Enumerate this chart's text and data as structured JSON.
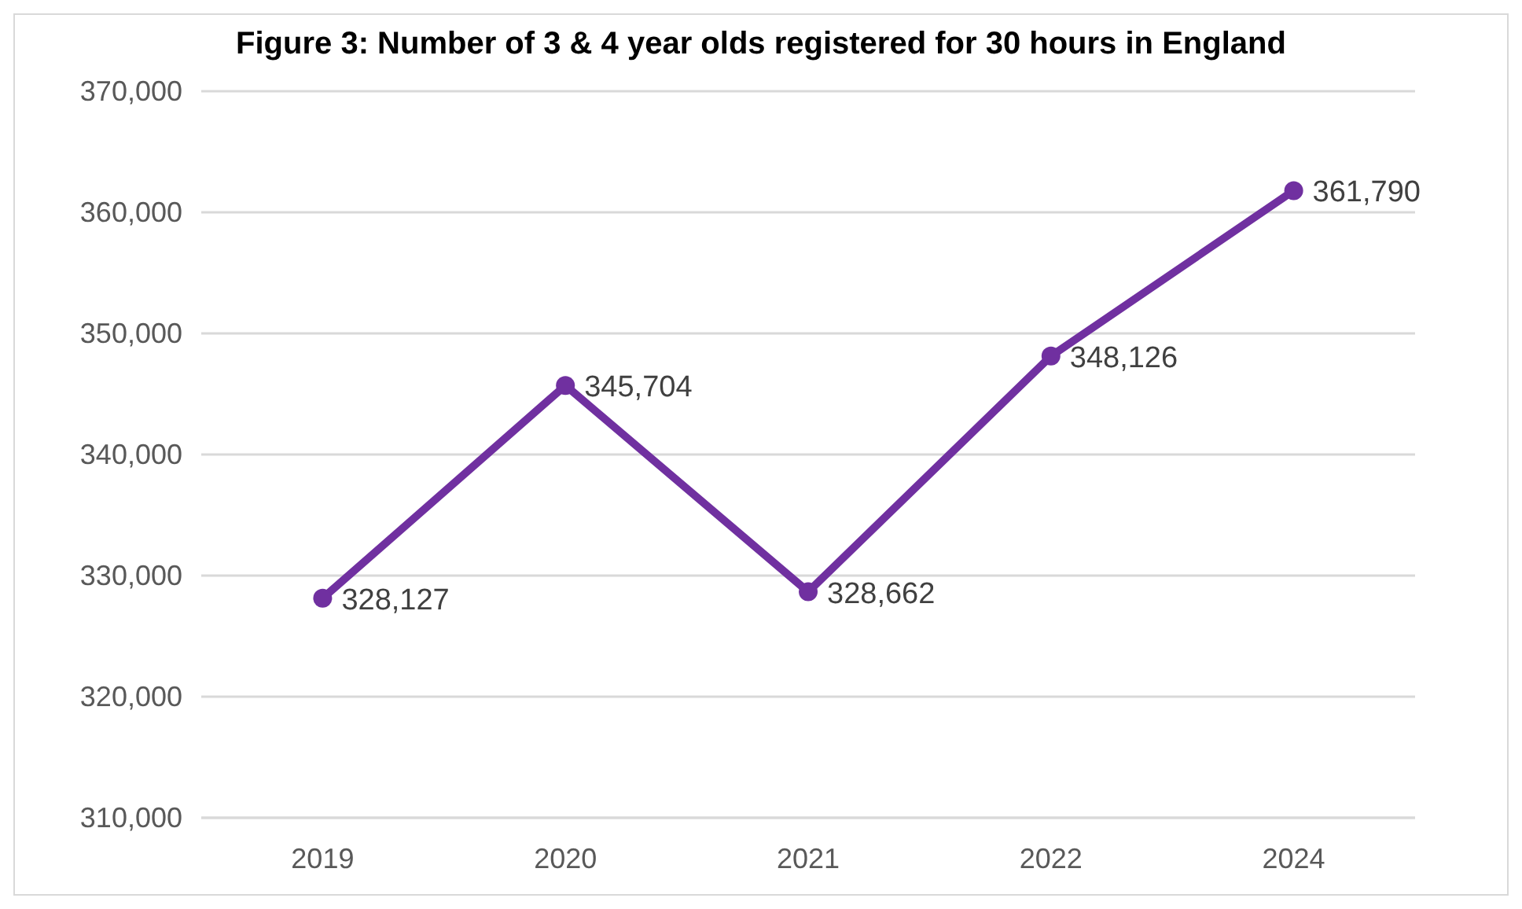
{
  "chart_data": {
    "type": "line",
    "title": "Figure 3: Number of 3 & 4 year olds registered for 30 hours in England",
    "categories": [
      "2019",
      "2020",
      "2021",
      "2022",
      "2024"
    ],
    "series": [
      {
        "color": "#7030a0",
        "values": [
          328127,
          345704,
          328662,
          348126,
          361790
        ],
        "value_labels": [
          "328,127",
          "345,704",
          "328,662",
          "348,126",
          "361,790"
        ]
      }
    ],
    "ylim": [
      310000,
      370000
    ],
    "yticks": [
      {
        "value": 310000,
        "label": "310,000"
      },
      {
        "value": 320000,
        "label": "320,000"
      },
      {
        "value": 330000,
        "label": "330,000"
      },
      {
        "value": 340000,
        "label": "340,000"
      },
      {
        "value": 350000,
        "label": "350,000"
      },
      {
        "value": 360000,
        "label": "360,000"
      },
      {
        "value": 370000,
        "label": "370,000"
      }
    ],
    "grid": "y",
    "marker": "circle",
    "line_style": "solid"
  }
}
